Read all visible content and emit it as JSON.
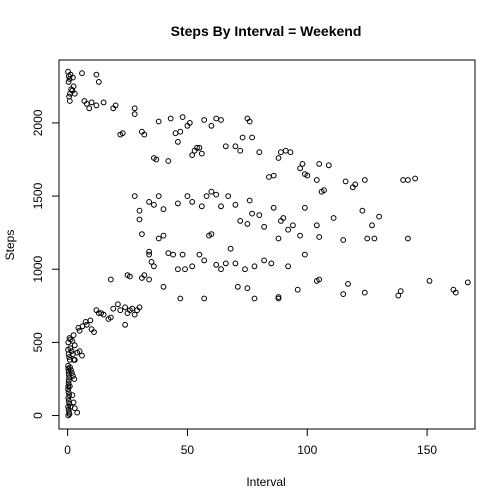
{
  "chart_data": {
    "type": "scatter",
    "title": "Steps By Interval = Weekend",
    "xlabel": "Interval",
    "ylabel": "Steps",
    "xlim": [
      -3.6,
      170
    ],
    "ylim": [
      -92,
      2430
    ],
    "x_ticks": [
      0,
      50,
      100,
      150
    ],
    "y_ticks": [
      0,
      500,
      1000,
      1500,
      2000
    ],
    "x_tick_labels": [
      "0",
      "50",
      "100",
      "150"
    ],
    "y_tick_labels": [
      "0",
      "500",
      "1000",
      "1500",
      "2000"
    ],
    "grid": false,
    "marker": "open-circle",
    "color": "#000000",
    "points": [
      [
        0.2,
        2350
      ],
      [
        0.5,
        2320
      ],
      [
        0.8,
        2300
      ],
      [
        1.2,
        2330
      ],
      [
        0.4,
        2280
      ],
      [
        1.5,
        2230
      ],
      [
        1.0,
        2200
      ],
      [
        0.6,
        2180
      ],
      [
        2.0,
        2220
      ],
      [
        2.5,
        2250
      ],
      [
        3.0,
        2200
      ],
      [
        2.2,
        2310
      ],
      [
        0.9,
        2150
      ],
      [
        6,
        2340
      ],
      [
        7,
        2150
      ],
      [
        8,
        2130
      ],
      [
        9,
        2100
      ],
      [
        10,
        2140
      ],
      [
        12,
        2330
      ],
      [
        13,
        2280
      ],
      [
        12,
        2120
      ],
      [
        15,
        2140
      ],
      [
        20,
        2120
      ],
      [
        19,
        2100
      ],
      [
        22,
        1920
      ],
      [
        23,
        1930
      ],
      [
        28,
        2100
      ],
      [
        28,
        2060
      ],
      [
        31,
        1940
      ],
      [
        32,
        1920
      ],
      [
        36,
        1760
      ],
      [
        37,
        1750
      ],
      [
        38,
        2010
      ],
      [
        42,
        1740
      ],
      [
        43,
        2030
      ],
      [
        45,
        1930
      ],
      [
        46,
        1870
      ],
      [
        47,
        1940
      ],
      [
        48,
        2040
      ],
      [
        50,
        1980
      ],
      [
        51,
        2000
      ],
      [
        52,
        1780
      ],
      [
        53,
        1810
      ],
      [
        54,
        1830
      ],
      [
        55,
        1830
      ],
      [
        56,
        1790
      ],
      [
        57,
        2020
      ],
      [
        60,
        1980
      ],
      [
        62,
        2030
      ],
      [
        64,
        2020
      ],
      [
        66,
        1840
      ],
      [
        70,
        1840
      ],
      [
        72,
        1810
      ],
      [
        73,
        1900
      ],
      [
        75,
        2030
      ],
      [
        76,
        2010
      ],
      [
        77,
        1900
      ],
      [
        80,
        1800
      ],
      [
        84,
        1630
      ],
      [
        86,
        1640
      ],
      [
        88,
        1760
      ],
      [
        89,
        1800
      ],
      [
        91,
        1810
      ],
      [
        93,
        1800
      ],
      [
        97,
        1690
      ],
      [
        98,
        1720
      ],
      [
        99,
        1650
      ],
      [
        100,
        1640
      ],
      [
        104,
        1610
      ],
      [
        105,
        1720
      ],
      [
        106,
        1530
      ],
      [
        107,
        1540
      ],
      [
        109,
        1710
      ],
      [
        116,
        1600
      ],
      [
        119,
        1560
      ],
      [
        120,
        1580
      ],
      [
        124,
        1610
      ],
      [
        140,
        1610
      ],
      [
        142,
        1610
      ],
      [
        145,
        1620
      ],
      [
        28,
        1500
      ],
      [
        30,
        1400
      ],
      [
        34,
        1460
      ],
      [
        36,
        1440
      ],
      [
        38,
        1500
      ],
      [
        40,
        1410
      ],
      [
        46,
        1450
      ],
      [
        50,
        1500
      ],
      [
        52,
        1460
      ],
      [
        56,
        1430
      ],
      [
        58,
        1500
      ],
      [
        60,
        1530
      ],
      [
        62,
        1510
      ],
      [
        64,
        1430
      ],
      [
        67,
        1500
      ],
      [
        70,
        1440
      ],
      [
        72,
        1330
      ],
      [
        75,
        1310
      ],
      [
        76,
        1470
      ],
      [
        77,
        1380
      ],
      [
        80,
        1370
      ],
      [
        82,
        1290
      ],
      [
        86,
        1420
      ],
      [
        88,
        1210
      ],
      [
        89,
        1330
      ],
      [
        90,
        1350
      ],
      [
        92,
        1270
      ],
      [
        94,
        1300
      ],
      [
        97,
        1230
      ],
      [
        99,
        1420
      ],
      [
        104,
        1300
      ],
      [
        105,
        1220
      ],
      [
        111,
        1350
      ],
      [
        115,
        1200
      ],
      [
        123,
        1400
      ],
      [
        125,
        1210
      ],
      [
        127,
        1300
      ],
      [
        128,
        1210
      ],
      [
        130,
        1360
      ],
      [
        142,
        1210
      ],
      [
        30,
        1340
      ],
      [
        31,
        1240
      ],
      [
        34,
        1120
      ],
      [
        34,
        1100
      ],
      [
        35,
        1050
      ],
      [
        36,
        1020
      ],
      [
        38,
        1210
      ],
      [
        40,
        1230
      ],
      [
        42,
        1110
      ],
      [
        44,
        1100
      ],
      [
        46,
        1000
      ],
      [
        48,
        1100
      ],
      [
        49,
        1000
      ],
      [
        52,
        1020
      ],
      [
        55,
        1100
      ],
      [
        57,
        1060
      ],
      [
        59,
        1230
      ],
      [
        60,
        1240
      ],
      [
        62,
        1030
      ],
      [
        64,
        1000
      ],
      [
        66,
        1040
      ],
      [
        68,
        1140
      ],
      [
        70,
        1040
      ],
      [
        74,
        1000
      ],
      [
        78,
        1020
      ],
      [
        82,
        1060
      ],
      [
        85,
        1040
      ],
      [
        92,
        1020
      ],
      [
        99,
        1100
      ],
      [
        104,
        920
      ],
      [
        105,
        930
      ],
      [
        18,
        930
      ],
      [
        25,
        960
      ],
      [
        26,
        950
      ],
      [
        31,
        940
      ],
      [
        32,
        960
      ],
      [
        34,
        930
      ],
      [
        40,
        880
      ],
      [
        47,
        800
      ],
      [
        57,
        800
      ],
      [
        71,
        880
      ],
      [
        75,
        870
      ],
      [
        78,
        800
      ],
      [
        88,
        810
      ],
      [
        88,
        800
      ],
      [
        96,
        860
      ],
      [
        115,
        830
      ],
      [
        117,
        900
      ],
      [
        124,
        840
      ],
      [
        138,
        820
      ],
      [
        139,
        850
      ],
      [
        151,
        920
      ],
      [
        161,
        860
      ],
      [
        162,
        840
      ],
      [
        167,
        910
      ],
      [
        0.3,
        500
      ],
      [
        0.8,
        530
      ],
      [
        1.2,
        520
      ],
      [
        2.0,
        510
      ],
      [
        2.5,
        550
      ],
      [
        3.0,
        480
      ],
      [
        4.5,
        600
      ],
      [
        5.0,
        580
      ],
      [
        6.2,
        610
      ],
      [
        7.5,
        640
      ],
      [
        8.0,
        620
      ],
      [
        9.5,
        650
      ],
      [
        10,
        590
      ],
      [
        11,
        570
      ],
      [
        12,
        720
      ],
      [
        13,
        700
      ],
      [
        14,
        700
      ],
      [
        15,
        690
      ],
      [
        17,
        660
      ],
      [
        18,
        670
      ],
      [
        19,
        730
      ],
      [
        21,
        760
      ],
      [
        22,
        720
      ],
      [
        24,
        740
      ],
      [
        25,
        700
      ],
      [
        26,
        720
      ],
      [
        27,
        730
      ],
      [
        28,
        690
      ],
      [
        29,
        720
      ],
      [
        30,
        740
      ],
      [
        24,
        620
      ],
      [
        0.2,
        450
      ],
      [
        0.4,
        420
      ],
      [
        0.6,
        400
      ],
      [
        0.9,
        380
      ],
      [
        1.1,
        460
      ],
      [
        1.6,
        440
      ],
      [
        2.2,
        420
      ],
      [
        2.6,
        380
      ],
      [
        4.0,
        430
      ],
      [
        5.0,
        440
      ],
      [
        6.0,
        410
      ],
      [
        0.2,
        340
      ],
      [
        0.3,
        320
      ],
      [
        0.4,
        300
      ],
      [
        0.5,
        280
      ],
      [
        0.6,
        260
      ],
      [
        0.5,
        240
      ],
      [
        0.4,
        220
      ],
      [
        0.3,
        200
      ],
      [
        0.2,
        180
      ],
      [
        0.4,
        160
      ],
      [
        0.6,
        140
      ],
      [
        0.3,
        120
      ],
      [
        0.5,
        100
      ],
      [
        0.7,
        80
      ],
      [
        0.2,
        60
      ],
      [
        0.4,
        40
      ],
      [
        0.6,
        20
      ],
      [
        0.8,
        10
      ],
      [
        0.3,
        0
      ],
      [
        1.0,
        330
      ],
      [
        1.4,
        310
      ],
      [
        1.8,
        290
      ],
      [
        2.2,
        270
      ],
      [
        2.8,
        250
      ],
      [
        3.0,
        380
      ],
      [
        2.0,
        140
      ],
      [
        2.5,
        90
      ],
      [
        3.0,
        50
      ],
      [
        0.9,
        200
      ],
      [
        1.2,
        60
      ],
      [
        4.0,
        20
      ]
    ]
  }
}
